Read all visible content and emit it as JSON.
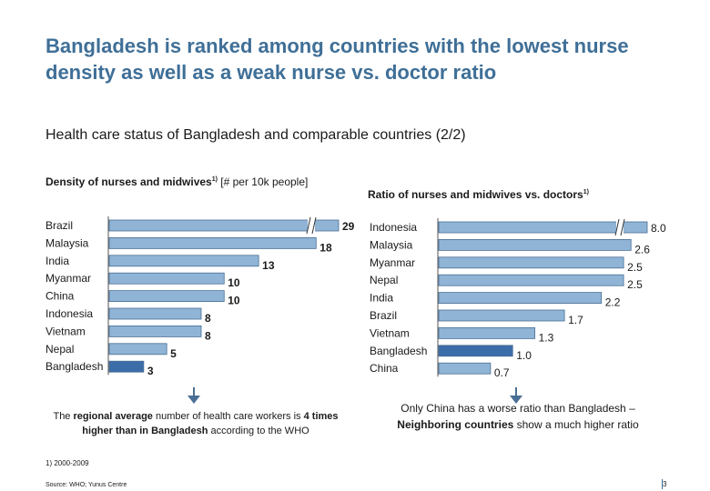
{
  "title": "Bangladesh is ranked among countries with the lowest nurse density as well as a weak nurse vs. doctor ratio",
  "subtitle": "Health care status of Bangladesh and comparable countries (2/2)",
  "left_chart": {
    "title_bold": "Density of nurses and midwives",
    "title_sup": "1)",
    "title_rest": " [# per 10k people]",
    "note_parts": {
      "a": "The ",
      "b": "regional average",
      "c": " number of health care  workers is ",
      "d": "4 times higher than in Bangladesh",
      "e": " according to the  WHO"
    }
  },
  "right_chart": {
    "title_bold": "Ratio of nurses and midwives vs. doctors",
    "title_sup": "1)",
    "note_line1": "Only China has a worse ratio than Bangladesh –",
    "note_line2_bold": "Neighboring countries",
    "note_line2_rest": " show a much higher ratio"
  },
  "chart_data": [
    {
      "type": "bar",
      "orientation": "horizontal",
      "title": "Density of nurses and midwives1) [# per 10k people]",
      "categories": [
        "Brazil",
        "Malaysia",
        "India",
        "Myanmar",
        "China",
        "Indonesia",
        "Vietnam",
        "Nepal",
        "Bangladesh"
      ],
      "values": [
        29,
        18,
        13,
        10,
        10,
        8,
        8,
        5,
        3
      ],
      "value_labels": [
        "29",
        "18",
        "13",
        "10",
        "10",
        "8",
        "8",
        "5",
        "3"
      ],
      "highlight": "Bangladesh",
      "axis_break_on": [
        "Brazil"
      ]
    },
    {
      "type": "bar",
      "orientation": "horizontal",
      "title": "Ratio of nurses and midwives vs. doctors1)",
      "categories": [
        "Indonesia",
        "Malaysia",
        "Myanmar",
        "Nepal",
        "India",
        "Brazil",
        "Vietnam",
        "Bangladesh",
        "China"
      ],
      "values": [
        8.0,
        2.6,
        2.5,
        2.5,
        2.2,
        1.7,
        1.3,
        1.0,
        0.7
      ],
      "value_labels": [
        "8.0",
        "2.6",
        "2.5",
        "2.5",
        "2.2",
        "1.7",
        "1.3",
        "1.0",
        "0.7"
      ],
      "highlight": "Bangladesh",
      "axis_break_on": [
        "Indonesia"
      ]
    }
  ],
  "colors": {
    "title": "#3f6f97",
    "bar_fill": "#8fb4d6",
    "bar_stroke": "#4a6f94",
    "bar_highlight": "#3d6da8",
    "arrow": "#4a6f94"
  },
  "footnote": "1) 2000-2009",
  "source": "Source: WHO; Yunus Centre",
  "page_number": "3"
}
